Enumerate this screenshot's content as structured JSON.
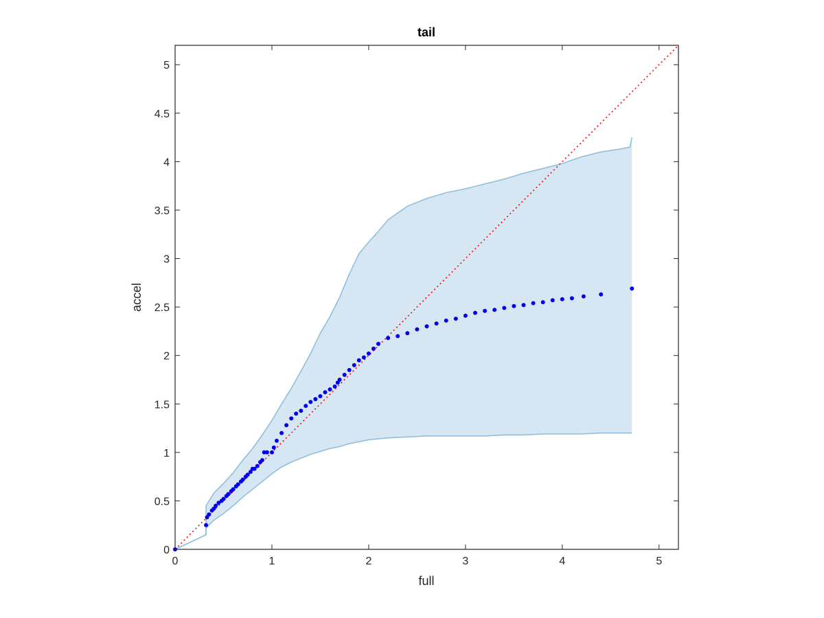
{
  "chart_data": {
    "type": "scatter",
    "title": "tail",
    "xlabel": "full",
    "ylabel": "accel",
    "xlim": [
      0,
      5.2
    ],
    "ylim": [
      0,
      5.2
    ],
    "xticks": [
      "0",
      "1",
      "2",
      "3",
      "4",
      "5"
    ],
    "yticks": [
      "0",
      "0.5",
      "1",
      "1.5",
      "2",
      "2.5",
      "3",
      "3.5",
      "4",
      "4.5",
      "5"
    ],
    "grid": false,
    "colors": {
      "points": "#0000ee",
      "reference_line": "#ff0000",
      "band_fill": "#d6e7f3",
      "band_edge": "#8fbfdc",
      "axes": "#262626"
    },
    "series": [
      {
        "kind": "scatter",
        "x": [
          0.0,
          0.32,
          0.33,
          0.35,
          0.38,
          0.4,
          0.42,
          0.45,
          0.48,
          0.5,
          0.53,
          0.55,
          0.58,
          0.6,
          0.63,
          0.65,
          0.68,
          0.7,
          0.73,
          0.75,
          0.78,
          0.8,
          0.82,
          0.85,
          0.88,
          0.9,
          0.92,
          0.95,
          1.0,
          1.02,
          1.05,
          1.1,
          1.15,
          1.2,
          1.25,
          1.3,
          1.35,
          1.4,
          1.45,
          1.5,
          1.55,
          1.6,
          1.65,
          1.68,
          1.7,
          1.75,
          1.8,
          1.85,
          1.9,
          1.95,
          2.0,
          2.05,
          2.1,
          2.2,
          2.3,
          2.4,
          2.5,
          2.6,
          2.7,
          2.8,
          2.9,
          3.0,
          3.1,
          3.2,
          3.3,
          3.4,
          3.5,
          3.6,
          3.7,
          3.8,
          3.9,
          4.0,
          4.1,
          4.22,
          4.4,
          4.72
        ],
        "y": [
          0.0,
          0.25,
          0.33,
          0.36,
          0.4,
          0.42,
          0.45,
          0.48,
          0.5,
          0.52,
          0.55,
          0.57,
          0.6,
          0.62,
          0.65,
          0.67,
          0.7,
          0.72,
          0.75,
          0.77,
          0.8,
          0.83,
          0.83,
          0.86,
          0.9,
          0.92,
          1.0,
          1.0,
          1.0,
          1.05,
          1.12,
          1.2,
          1.28,
          1.35,
          1.4,
          1.43,
          1.48,
          1.52,
          1.55,
          1.58,
          1.62,
          1.65,
          1.68,
          1.72,
          1.75,
          1.8,
          1.85,
          1.9,
          1.95,
          1.98,
          2.02,
          2.07,
          2.12,
          2.18,
          2.2,
          2.23,
          2.27,
          2.3,
          2.33,
          2.36,
          2.38,
          2.41,
          2.44,
          2.46,
          2.47,
          2.49,
          2.51,
          2.52,
          2.54,
          2.55,
          2.57,
          2.58,
          2.59,
          2.61,
          2.63,
          2.69
        ]
      },
      {
        "kind": "reference_line",
        "x": [
          0,
          5.2
        ],
        "y": [
          0,
          5.2
        ]
      },
      {
        "kind": "band",
        "x": [
          0,
          0.32,
          0.32,
          0.4,
          0.5,
          0.6,
          0.7,
          0.8,
          0.9,
          1.0,
          1.1,
          1.2,
          1.3,
          1.4,
          1.5,
          1.6,
          1.7,
          1.8,
          1.9,
          2.0,
          2.1,
          2.2,
          2.4,
          2.6,
          2.8,
          3.0,
          3.2,
          3.4,
          3.6,
          3.8,
          4.0,
          4.2,
          4.4,
          4.6,
          4.7,
          4.72
        ],
        "upper": [
          0,
          0.15,
          0.45,
          0.58,
          0.68,
          0.79,
          0.92,
          1.04,
          1.18,
          1.33,
          1.5,
          1.66,
          1.84,
          2.02,
          2.23,
          2.4,
          2.6,
          2.84,
          3.05,
          3.17,
          3.28,
          3.4,
          3.54,
          3.62,
          3.68,
          3.72,
          3.77,
          3.82,
          3.88,
          3.93,
          3.98,
          4.05,
          4.1,
          4.13,
          4.15,
          4.25
        ],
        "lower": [
          0,
          0.15,
          0.22,
          0.3,
          0.37,
          0.45,
          0.54,
          0.62,
          0.7,
          0.78,
          0.85,
          0.9,
          0.94,
          0.98,
          1.01,
          1.04,
          1.06,
          1.09,
          1.11,
          1.13,
          1.14,
          1.15,
          1.16,
          1.17,
          1.17,
          1.17,
          1.17,
          1.18,
          1.18,
          1.19,
          1.19,
          1.19,
          1.2,
          1.2,
          1.2,
          1.2
        ]
      }
    ]
  }
}
